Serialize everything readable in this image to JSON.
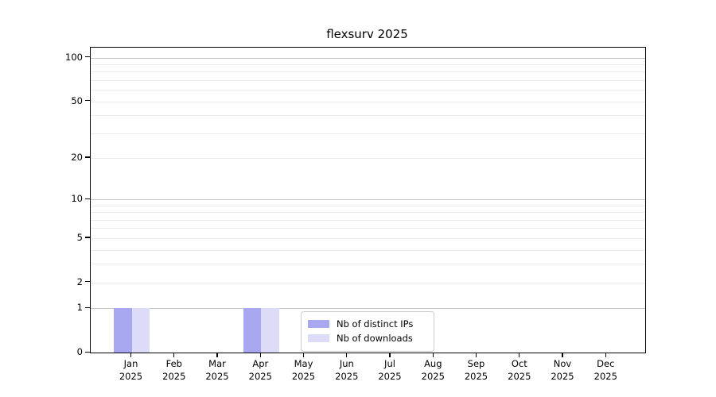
{
  "chart_data": {
    "type": "bar",
    "title": "flexsurv 2025",
    "categories": [
      {
        "month": "Jan",
        "year": "2025"
      },
      {
        "month": "Feb",
        "year": "2025"
      },
      {
        "month": "Mar",
        "year": "2025"
      },
      {
        "month": "Apr",
        "year": "2025"
      },
      {
        "month": "May",
        "year": "2025"
      },
      {
        "month": "Jun",
        "year": "2025"
      },
      {
        "month": "Jul",
        "year": "2025"
      },
      {
        "month": "Aug",
        "year": "2025"
      },
      {
        "month": "Sep",
        "year": "2025"
      },
      {
        "month": "Oct",
        "year": "2025"
      },
      {
        "month": "Nov",
        "year": "2025"
      },
      {
        "month": "Dec",
        "year": "2025"
      }
    ],
    "series": [
      {
        "name": "Nb of distinct IPs",
        "color": "#a8a8f0",
        "values": [
          1,
          0,
          0,
          1,
          0,
          0,
          0,
          0,
          0,
          0,
          0,
          0
        ]
      },
      {
        "name": "Nb of downloads",
        "color": "#dcdcf8",
        "values": [
          1,
          0,
          0,
          1,
          0,
          0,
          0,
          0,
          0,
          0,
          0,
          0
        ]
      }
    ],
    "yscale": "log1p",
    "ylim": [
      0,
      117
    ],
    "yticks": [
      0,
      1,
      2,
      5,
      10,
      20,
      50,
      100
    ],
    "major_gridlines": [
      1,
      10,
      100
    ],
    "minor_gridlines": [
      3,
      4,
      6,
      7,
      8,
      9,
      30,
      40,
      60,
      70,
      80,
      90
    ],
    "grid": true,
    "legend_position": "lower center",
    "colors": {
      "major_grid": "#c6c6c6",
      "minor_grid": "#ececec",
      "spine": "#000000",
      "text": "#000000"
    }
  }
}
